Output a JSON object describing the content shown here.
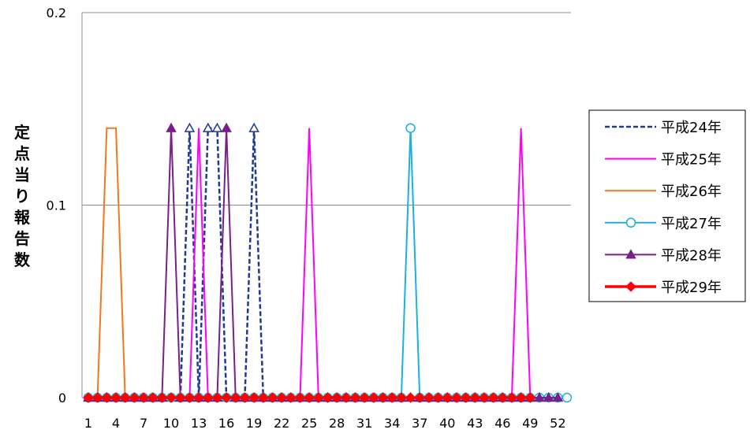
{
  "chart_data": {
    "type": "line",
    "title": "",
    "xlabel": "",
    "ylabel": "定点当り報告数",
    "ylim": [
      0,
      0.2
    ],
    "y_ticks": [
      0,
      0.1,
      0.2
    ],
    "y_tick_labels": [
      "0",
      "0.1",
      "0.2"
    ],
    "x": [
      1,
      2,
      3,
      4,
      5,
      6,
      7,
      8,
      9,
      10,
      11,
      12,
      13,
      14,
      15,
      16,
      17,
      18,
      19,
      20,
      21,
      22,
      23,
      24,
      25,
      26,
      27,
      28,
      29,
      30,
      31,
      32,
      33,
      34,
      35,
      36,
      37,
      38,
      39,
      40,
      41,
      42,
      43,
      44,
      45,
      46,
      47,
      48,
      49,
      50,
      51,
      52,
      53
    ],
    "x_tick_labels": [
      "1",
      "4",
      "7",
      "10",
      "13",
      "16",
      "19",
      "22",
      "25",
      "28",
      "31",
      "34",
      "37",
      "40",
      "43",
      "46",
      "49",
      "52"
    ],
    "grid": true,
    "legend_position": "right",
    "series": [
      {
        "name": "平成24年",
        "color": "#1f3a93",
        "style": "dashed",
        "marker": "triangle-open",
        "values": [
          0,
          0,
          0,
          0,
          0,
          0,
          0,
          0,
          0,
          0,
          0,
          0.14,
          0,
          0.14,
          0.14,
          0,
          0,
          0,
          0.14,
          0,
          0,
          0,
          0,
          0,
          0,
          0,
          0,
          0,
          0,
          0,
          0,
          0,
          0,
          0,
          0,
          0,
          0,
          0,
          0,
          0,
          0,
          0,
          0,
          0,
          0,
          0,
          0,
          0,
          0,
          0,
          0,
          0,
          null
        ]
      },
      {
        "name": "平成25年",
        "color": "#ff00ff",
        "style": "solid",
        "marker": "none",
        "values": [
          0,
          0,
          0,
          0,
          0,
          0,
          0,
          0,
          0,
          0,
          0,
          0,
          0.14,
          0,
          0,
          0,
          0,
          0,
          0,
          0,
          0,
          0,
          0,
          0,
          0.14,
          0,
          0,
          0,
          0,
          0,
          0,
          0,
          0,
          0,
          0,
          0,
          0,
          0,
          0,
          0,
          0,
          0,
          0,
          0,
          0,
          0,
          0,
          0.14,
          0,
          0,
          0,
          0,
          null
        ]
      },
      {
        "name": "平成26年",
        "color": "#f07820",
        "style": "solid",
        "marker": "none",
        "values": [
          0,
          0,
          0.14,
          0.14,
          0,
          0,
          0,
          0,
          0,
          0,
          0,
          0,
          0,
          0,
          0,
          0,
          0,
          0,
          0,
          0,
          0,
          0,
          0,
          0,
          0,
          0,
          0,
          0,
          0,
          0,
          0,
          0,
          0,
          0,
          0,
          0,
          0,
          0,
          0,
          0,
          0,
          0,
          0,
          0,
          0,
          0,
          0,
          0,
          0,
          0,
          0,
          0,
          null
        ]
      },
      {
        "name": "平成27年",
        "color": "#1ab0e0",
        "style": "solid",
        "marker": "circle-open",
        "values": [
          0,
          0,
          0,
          0,
          0,
          0,
          0,
          0,
          0,
          0,
          0,
          0,
          0,
          0,
          0,
          0,
          0,
          0,
          0,
          0,
          0,
          0,
          0,
          0,
          0,
          0,
          0,
          0,
          0,
          0,
          0,
          0,
          0,
          0,
          0,
          0.14,
          0,
          0,
          0,
          0,
          0,
          0,
          0,
          0,
          0,
          0,
          0,
          0,
          0,
          0,
          0,
          0,
          0
        ]
      },
      {
        "name": "平成28年",
        "color": "#7a1f8a",
        "style": "solid",
        "marker": "triangle",
        "values": [
          0,
          0,
          0,
          0,
          0,
          0,
          0,
          0,
          0,
          0.14,
          0,
          0,
          0,
          0,
          0,
          0.14,
          0,
          0,
          0,
          0,
          0,
          0,
          0,
          0,
          0,
          0,
          0,
          0,
          0,
          0,
          0,
          0,
          0,
          0,
          0,
          0,
          0,
          0,
          0,
          0,
          0,
          0,
          0,
          0,
          0,
          0,
          0,
          0,
          0,
          0,
          0,
          0,
          null
        ]
      },
      {
        "name": "平成29年",
        "color": "#ff0000",
        "style": "solid-thick",
        "marker": "diamond",
        "values": [
          0,
          0,
          0,
          0,
          0,
          0,
          0,
          0,
          0,
          0,
          0,
          0,
          0,
          0,
          0,
          0,
          0,
          0,
          0,
          0,
          0,
          0,
          0,
          0,
          0,
          0,
          0,
          0,
          0,
          0,
          0,
          0,
          0,
          0,
          0,
          0,
          0,
          0,
          0,
          0,
          0,
          0,
          0,
          0,
          0,
          0,
          0,
          0,
          0,
          null,
          null,
          null,
          null
        ]
      }
    ]
  }
}
